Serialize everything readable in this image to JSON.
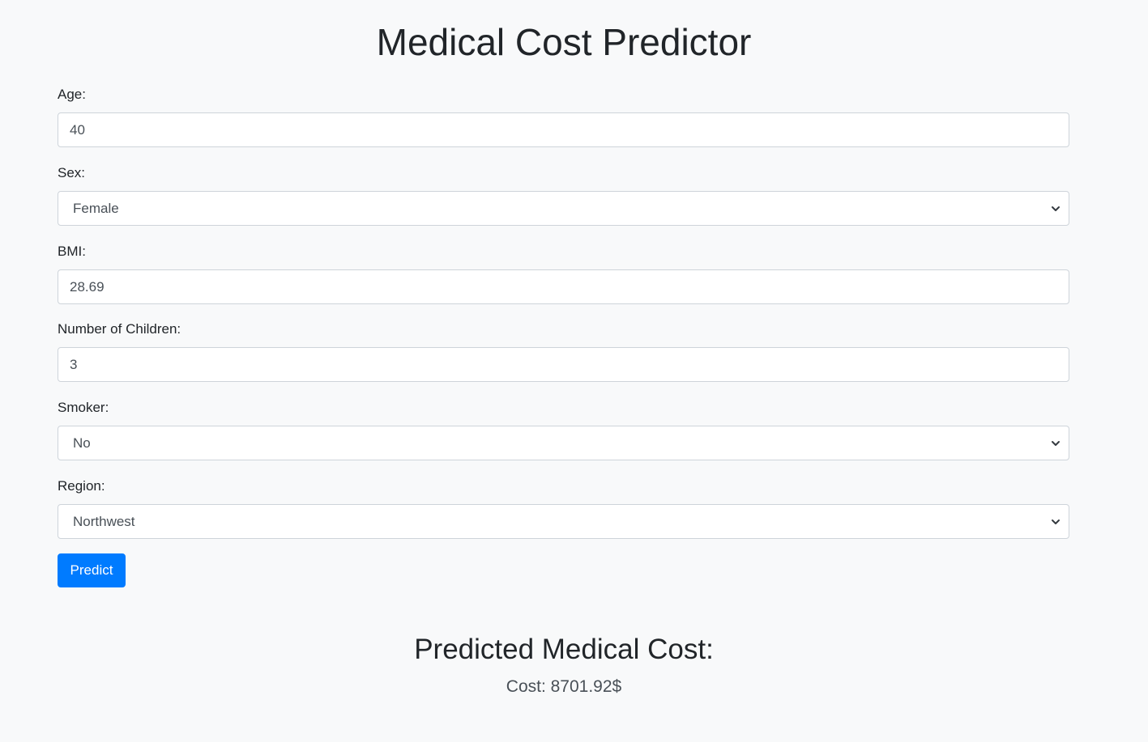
{
  "title": "Medical Cost Predictor",
  "form": {
    "age": {
      "label": "Age:",
      "value": "40"
    },
    "sex": {
      "label": "Sex:",
      "value": "Female"
    },
    "bmi": {
      "label": "BMI:",
      "value": "28.69"
    },
    "children": {
      "label": "Number of Children:",
      "value": "3"
    },
    "smoker": {
      "label": "Smoker:",
      "value": "No"
    },
    "region": {
      "label": "Region:",
      "value": "Northwest"
    },
    "submit_label": "Predict"
  },
  "result": {
    "heading": "Predicted Medical Cost:",
    "text": "Cost: 8701.92$"
  },
  "colors": {
    "background": "#f8f9fa",
    "primary": "#007bff",
    "input_border": "#ced4da",
    "text": "#212529"
  },
  "icons": {
    "select_arrow": "chevron-down-icon"
  }
}
